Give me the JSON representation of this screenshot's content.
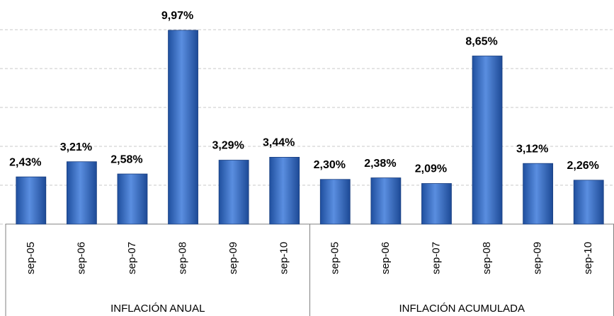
{
  "chart_data": {
    "type": "bar",
    "color": "#3b6fc6",
    "grid": true,
    "ylim": [
      0,
      10
    ],
    "yticks": [
      0,
      2,
      4,
      6,
      8,
      10
    ],
    "groups": [
      {
        "name": "INFLACIÓN ANUAL",
        "categories": [
          "sep-05",
          "sep-06",
          "sep-07",
          "sep-08",
          "sep-09",
          "sep-10"
        ],
        "values": [
          2.43,
          3.21,
          2.58,
          9.97,
          3.29,
          3.44
        ],
        "value_labels": [
          "2,43%",
          "3,21%",
          "2,58%",
          "9,97%",
          "3,29%",
          "3,44%"
        ]
      },
      {
        "name": "INFLACIÓN ACUMULADA",
        "categories": [
          "sep-05",
          "sep-06",
          "sep-07",
          "sep-08",
          "sep-09",
          "sep-10"
        ],
        "values": [
          2.3,
          2.38,
          2.09,
          8.65,
          3.12,
          2.26
        ],
        "value_labels": [
          "2,30%",
          "2,38%",
          "2,09%",
          "8,65%",
          "3,12%",
          "2,26%"
        ]
      }
    ]
  }
}
